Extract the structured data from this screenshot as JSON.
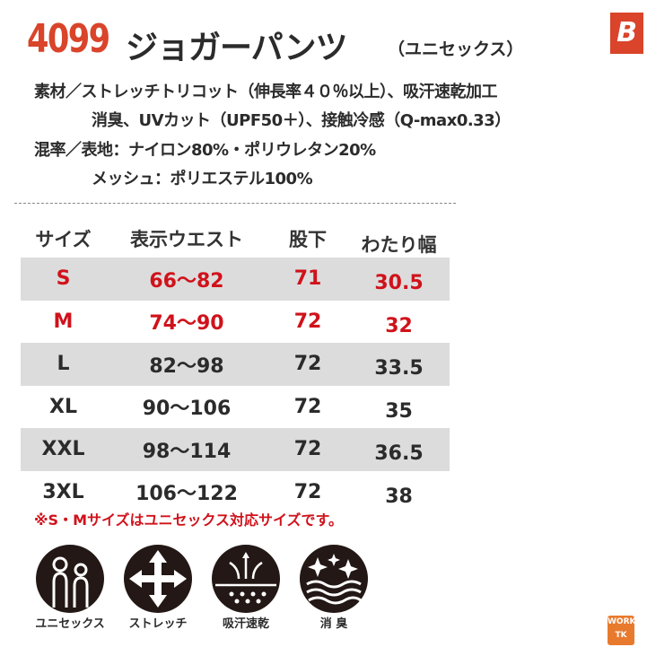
{
  "title": {
    "number": "4099",
    "name": "ジョガーパンツ",
    "sub": "（ユニセックス）"
  },
  "brand_logo": "B",
  "specs": {
    "material_line1": "素材／ストレッチトリコット（伸長率４０％以上）、吸汗速乾加工",
    "material_line2": "消臭、UVカット（UPF50＋）、接触冷感（Q-max0.33）",
    "blend_line1": "混率／表地：ナイロン80%・ポリウレタン20%",
    "blend_line2": "メッシュ：ポリエステル100%"
  },
  "table": {
    "headers": [
      "サイズ",
      "表示ウエスト",
      "股下",
      "わたり幅"
    ],
    "rows": [
      [
        "S",
        "66〜82",
        "71",
        "30.5"
      ],
      [
        "M",
        "74〜90",
        "72",
        "32"
      ],
      [
        "L",
        "82〜98",
        "72",
        "33.5"
      ],
      [
        "XL",
        "90〜106",
        "72",
        "35"
      ],
      [
        "XXL",
        "98〜114",
        "72",
        "36.5"
      ],
      [
        "3XL",
        "106〜122",
        "72",
        "38"
      ]
    ]
  },
  "note": "※S・Mサイズはユニセックス対応サイズです。",
  "features": [
    {
      "icon": "unisex-icon",
      "label": "ユニセックス"
    },
    {
      "icon": "stretch-icon",
      "label": "ストレッチ"
    },
    {
      "icon": "sweat-quick-dry-icon",
      "label": "吸汗速乾"
    },
    {
      "icon": "deodorant-icon",
      "label": "消 臭"
    }
  ],
  "work_logo": "WORK TK",
  "colors": {
    "accent": "#d9442a",
    "highlight": "#d0121b",
    "row_gray": "#dcdcdc"
  }
}
